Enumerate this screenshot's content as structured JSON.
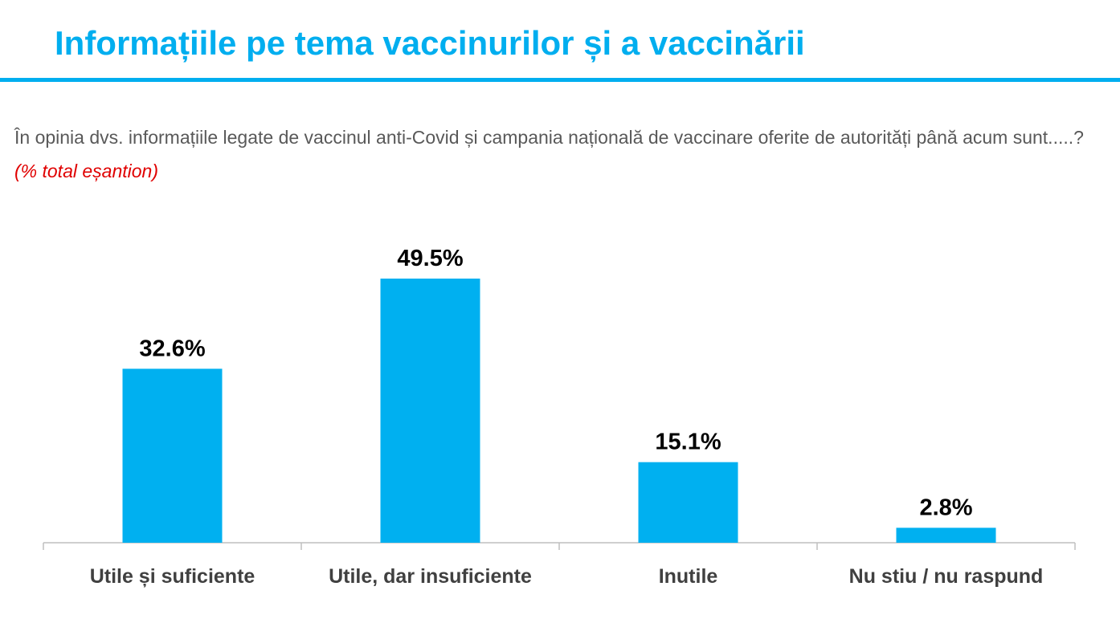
{
  "title": "Informațiile pe tema vaccinurilor și a vaccinării",
  "question": {
    "text": "În opinia dvs. informațiile legate de vaccinul anti-Covid și campania națională de vaccinare oferite de autorități până acum sunt.....?",
    "note": "(% total eșantion)"
  },
  "colors": {
    "accent": "#00aeef",
    "bar": "#00b0f0",
    "note": "#e00000"
  },
  "chart_data": {
    "type": "bar",
    "categories": [
      "Utile și suficiente",
      "Utile, dar insuficiente",
      "Inutile",
      "Nu stiu / nu raspund"
    ],
    "values": [
      32.6,
      49.5,
      15.1,
      2.8
    ],
    "value_labels": [
      "32.6%",
      "49.5%",
      "15.1%",
      "2.8%"
    ],
    "ylim": [
      0,
      60
    ],
    "grid": false,
    "legend": "none"
  }
}
